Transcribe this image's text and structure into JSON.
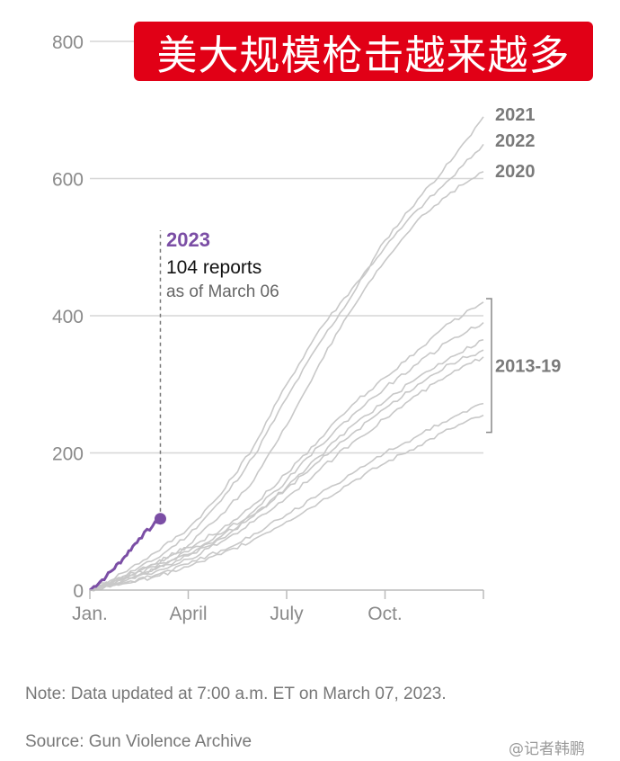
{
  "title": "美大规模枪击越来越多",
  "chart_data": {
    "type": "line",
    "x_axis": {
      "ticks": [
        "Jan.",
        "April",
        "July",
        "Oct."
      ],
      "range": [
        "Jan. 1",
        "Dec. 31"
      ]
    },
    "y_axis": {
      "ticks": [
        0,
        200,
        400,
        600,
        800
      ],
      "range": [
        0,
        800
      ]
    },
    "grid": true,
    "series": [
      {
        "name": "2021",
        "color": "#c8c8c8",
        "points": [
          [
            0,
            0
          ],
          [
            1,
            20
          ],
          [
            2,
            45
          ],
          [
            3,
            80
          ],
          [
            4,
            130
          ],
          [
            5,
            195
          ],
          [
            6,
            280
          ],
          [
            7,
            360
          ],
          [
            8,
            430
          ],
          [
            9,
            510
          ],
          [
            10,
            570
          ],
          [
            11,
            625
          ],
          [
            12,
            690
          ]
        ]
      },
      {
        "name": "2022",
        "color": "#c8c8c8",
        "points": [
          [
            0,
            0
          ],
          [
            1,
            25
          ],
          [
            2,
            55
          ],
          [
            3,
            90
          ],
          [
            4,
            140
          ],
          [
            5,
            210
          ],
          [
            6,
            300
          ],
          [
            7,
            380
          ],
          [
            8,
            440
          ],
          [
            9,
            500
          ],
          [
            10,
            555
          ],
          [
            11,
            600
          ],
          [
            12,
            650
          ]
        ]
      },
      {
        "name": "2020",
        "color": "#c8c8c8",
        "points": [
          [
            0,
            0
          ],
          [
            1,
            18
          ],
          [
            2,
            38
          ],
          [
            3,
            65
          ],
          [
            4,
            110
          ],
          [
            5,
            160
          ],
          [
            6,
            240
          ],
          [
            7,
            330
          ],
          [
            8,
            410
          ],
          [
            9,
            480
          ],
          [
            10,
            540
          ],
          [
            11,
            580
          ],
          [
            12,
            610
          ]
        ]
      },
      {
        "color": "#c8c8c8",
        "points": [
          [
            0,
            0
          ],
          [
            1,
            18
          ],
          [
            2,
            38
          ],
          [
            3,
            62
          ],
          [
            4,
            88
          ],
          [
            5,
            125
          ],
          [
            6,
            170
          ],
          [
            7,
            220
          ],
          [
            8,
            270
          ],
          [
            9,
            310
          ],
          [
            10,
            350
          ],
          [
            11,
            390
          ],
          [
            12,
            420
          ]
        ]
      },
      {
        "color": "#c8c8c8",
        "points": [
          [
            0,
            0
          ],
          [
            1,
            16
          ],
          [
            2,
            34
          ],
          [
            3,
            56
          ],
          [
            4,
            82
          ],
          [
            5,
            115
          ],
          [
            6,
            160
          ],
          [
            7,
            210
          ],
          [
            8,
            255
          ],
          [
            9,
            295
          ],
          [
            10,
            330
          ],
          [
            11,
            365
          ],
          [
            12,
            390
          ]
        ]
      },
      {
        "color": "#c8c8c8",
        "points": [
          [
            0,
            0
          ],
          [
            1,
            14
          ],
          [
            2,
            30
          ],
          [
            3,
            50
          ],
          [
            4,
            75
          ],
          [
            5,
            108
          ],
          [
            6,
            150
          ],
          [
            7,
            195
          ],
          [
            8,
            240
          ],
          [
            9,
            275
          ],
          [
            10,
            310
          ],
          [
            11,
            340
          ],
          [
            12,
            365
          ]
        ]
      },
      {
        "color": "#c8c8c8",
        "points": [
          [
            0,
            0
          ],
          [
            1,
            15
          ],
          [
            2,
            32
          ],
          [
            3,
            52
          ],
          [
            4,
            78
          ],
          [
            5,
            110
          ],
          [
            6,
            148
          ],
          [
            7,
            188
          ],
          [
            8,
            228
          ],
          [
            9,
            265
          ],
          [
            10,
            300
          ],
          [
            11,
            330
          ],
          [
            12,
            350
          ]
        ]
      },
      {
        "color": "#c8c8c8",
        "points": [
          [
            0,
            0
          ],
          [
            1,
            12
          ],
          [
            2,
            27
          ],
          [
            3,
            45
          ],
          [
            4,
            70
          ],
          [
            5,
            100
          ],
          [
            6,
            135
          ],
          [
            7,
            175
          ],
          [
            8,
            215
          ],
          [
            9,
            250
          ],
          [
            10,
            285
          ],
          [
            11,
            315
          ],
          [
            12,
            340
          ]
        ]
      },
      {
        "color": "#c8c8c8",
        "points": [
          [
            0,
            0
          ],
          [
            1,
            10
          ],
          [
            2,
            22
          ],
          [
            3,
            38
          ],
          [
            4,
            58
          ],
          [
            5,
            82
          ],
          [
            6,
            110
          ],
          [
            7,
            140
          ],
          [
            8,
            170
          ],
          [
            9,
            200
          ],
          [
            10,
            225
          ],
          [
            11,
            250
          ],
          [
            12,
            272
          ]
        ]
      },
      {
        "color": "#c8c8c8",
        "points": [
          [
            0,
            0
          ],
          [
            1,
            9
          ],
          [
            2,
            20
          ],
          [
            3,
            34
          ],
          [
            4,
            52
          ],
          [
            5,
            74
          ],
          [
            6,
            100
          ],
          [
            7,
            128
          ],
          [
            8,
            158
          ],
          [
            9,
            185
          ],
          [
            10,
            210
          ],
          [
            11,
            235
          ],
          [
            12,
            255
          ]
        ]
      },
      {
        "name": "2023",
        "color": "#7b4ea5",
        "points": [
          [
            0,
            0
          ],
          [
            0.5,
            20
          ],
          [
            1,
            45
          ],
          [
            1.5,
            75
          ],
          [
            2.15,
            104
          ]
        ]
      }
    ],
    "annotation": {
      "year": "2023",
      "reports": "104 reports",
      "as_of": "as of March 06",
      "value": 104
    },
    "bracket_label": "2013-19",
    "bracket_range": [
      230,
      425
    ]
  },
  "note": "Note: Data updated at 7:00 a.m. ET on March 07, 2023.",
  "source": "Source: Gun Violence Archive",
  "watermark": "@记者韩鹏"
}
